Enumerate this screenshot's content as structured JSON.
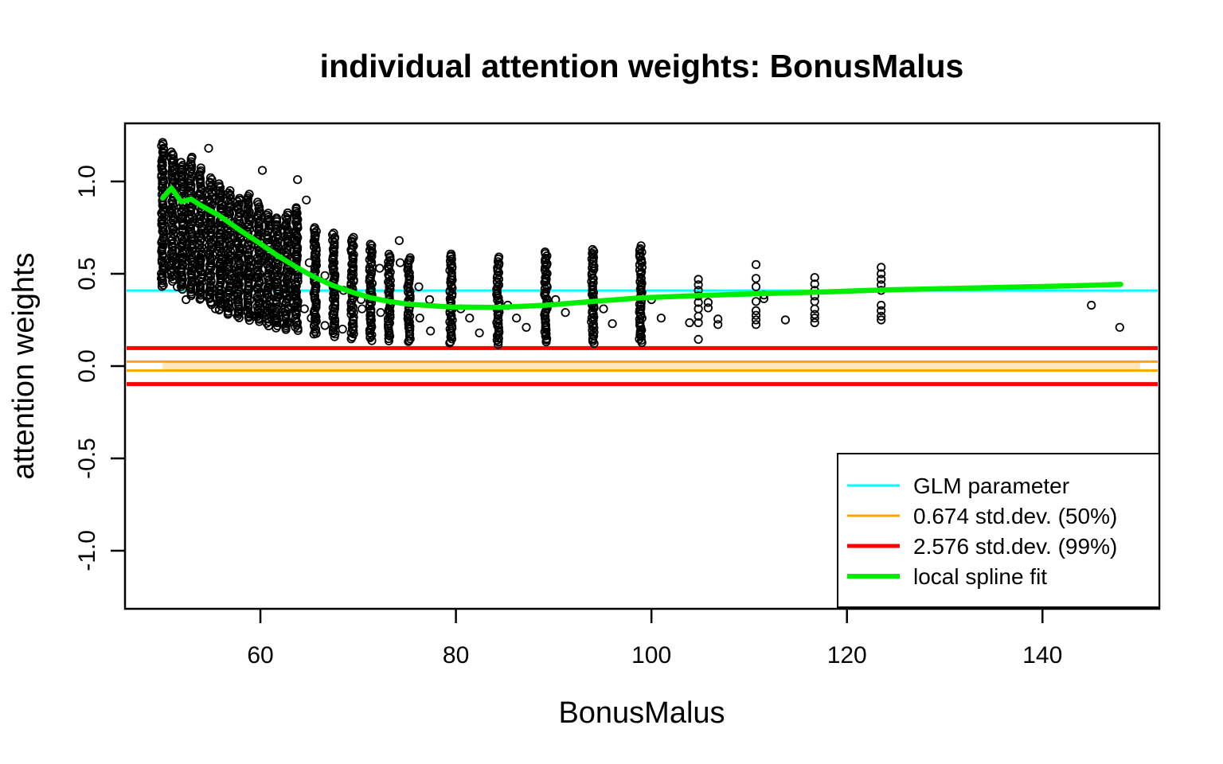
{
  "chart_data": {
    "type": "scatter",
    "title": "individual attention weights: BonusMalus",
    "xlabel": "BonusMalus",
    "ylabel": "attention weights",
    "x_ticks": [
      60,
      80,
      100,
      120,
      140
    ],
    "y_ticks": [
      1.0,
      0.5,
      0.0,
      -0.5,
      -1.0
    ],
    "y_tick_labels": [
      "1.0",
      "0.5",
      "0.0",
      "-0.5",
      "-1.0"
    ],
    "xlim": [
      46.15,
      151.95
    ],
    "ylim": [
      -1.315,
      1.315
    ],
    "grid": false,
    "legend_position": "bottom-right",
    "glm_parameter": 0.409,
    "std_band_50": {
      "lo": -0.0245,
      "hi": 0.0245,
      "x_from": 50,
      "x_to": 150
    },
    "std_band_99": {
      "lo": -0.0975,
      "hi": 0.0975
    },
    "colors": {
      "glm": "#00ffff",
      "band50_line": "#ffa500",
      "band50_fill": "#fde7bb",
      "band99": "#ff0000",
      "spline": "#00ee00",
      "points": "#000000"
    },
    "legend": [
      {
        "label": "GLM parameter",
        "color": "#00ffff",
        "lw": 3
      },
      {
        "label": "0.674 std.dev. (50%)",
        "color": "#ffa500",
        "lw": 3
      },
      {
        "label": "2.576 std.dev. (99%)",
        "color": "#ff0000",
        "lw": 5
      },
      {
        "label": "local spline fit",
        "color": "#00ee00",
        "lw": 6
      }
    ],
    "spline": [
      [
        50.0,
        0.91
      ],
      [
        50.9,
        0.965
      ],
      [
        51.9,
        0.89
      ],
      [
        52.9,
        0.905
      ],
      [
        53.9,
        0.87
      ],
      [
        55.8,
        0.815
      ],
      [
        57.8,
        0.74
      ],
      [
        59.8,
        0.67
      ],
      [
        61.7,
        0.6
      ],
      [
        63.7,
        0.535
      ],
      [
        65.6,
        0.48
      ],
      [
        67.5,
        0.435
      ],
      [
        69.4,
        0.4
      ],
      [
        71.3,
        0.37
      ],
      [
        73.2,
        0.35
      ],
      [
        75.2,
        0.335
      ],
      [
        79.5,
        0.32
      ],
      [
        84.3,
        0.318
      ],
      [
        89.2,
        0.33
      ],
      [
        94.0,
        0.35
      ],
      [
        98.9,
        0.37
      ],
      [
        104.8,
        0.382
      ],
      [
        110.7,
        0.392
      ],
      [
        116.7,
        0.4
      ],
      [
        123.5,
        0.412
      ],
      [
        130.0,
        0.42
      ],
      [
        137.0,
        0.428
      ],
      [
        143.0,
        0.435
      ],
      [
        148.0,
        0.443
      ]
    ],
    "dense_columns": [
      {
        "x": 50.0,
        "min": 0.43,
        "max": 1.215
      },
      {
        "x": 51.0,
        "min": 0.46,
        "max": 1.16
      },
      {
        "x": 52.0,
        "min": 0.42,
        "max": 1.1
      },
      {
        "x": 52.9,
        "min": 0.38,
        "max": 1.13
      },
      {
        "x": 53.9,
        "min": 0.36,
        "max": 1.07
      },
      {
        "x": 54.9,
        "min": 0.33,
        "max": 1.02
      },
      {
        "x": 55.9,
        "min": 0.3,
        "max": 0.985
      },
      {
        "x": 56.8,
        "min": 0.28,
        "max": 0.95
      },
      {
        "x": 57.8,
        "min": 0.26,
        "max": 0.91
      },
      {
        "x": 58.8,
        "min": 0.25,
        "max": 0.93
      },
      {
        "x": 59.8,
        "min": 0.24,
        "max": 0.885
      },
      {
        "x": 60.8,
        "min": 0.22,
        "max": 0.83
      },
      {
        "x": 61.7,
        "min": 0.21,
        "max": 0.8
      },
      {
        "x": 62.7,
        "min": 0.2,
        "max": 0.83
      },
      {
        "x": 63.7,
        "min": 0.19,
        "max": 0.86
      },
      {
        "x": 65.6,
        "min": 0.17,
        "max": 0.75
      },
      {
        "x": 67.5,
        "min": 0.16,
        "max": 0.72
      },
      {
        "x": 69.4,
        "min": 0.15,
        "max": 0.7
      },
      {
        "x": 71.3,
        "min": 0.14,
        "max": 0.66
      },
      {
        "x": 73.2,
        "min": 0.14,
        "max": 0.605
      },
      {
        "x": 75.2,
        "min": 0.13,
        "max": 0.59
      },
      {
        "x": 79.5,
        "min": 0.125,
        "max": 0.61
      },
      {
        "x": 84.3,
        "min": 0.12,
        "max": 0.59
      },
      {
        "x": 89.2,
        "min": 0.13,
        "max": 0.62
      },
      {
        "x": 94.0,
        "min": 0.12,
        "max": 0.63
      },
      {
        "x": 98.9,
        "min": 0.125,
        "max": 0.65
      }
    ],
    "points": [
      [
        104.8,
        0.47
      ],
      [
        104.8,
        0.44
      ],
      [
        104.8,
        0.41
      ],
      [
        104.8,
        0.38
      ],
      [
        104.8,
        0.345
      ],
      [
        104.8,
        0.31
      ],
      [
        104.8,
        0.27
      ],
      [
        104.8,
        0.235
      ],
      [
        104.8,
        0.145
      ],
      [
        103.9,
        0.235
      ],
      [
        105.8,
        0.345
      ],
      [
        105.8,
        0.315
      ],
      [
        106.8,
        0.255
      ],
      [
        106.8,
        0.225
      ],
      [
        110.7,
        0.55
      ],
      [
        110.7,
        0.475
      ],
      [
        110.7,
        0.43
      ],
      [
        110.7,
        0.35
      ],
      [
        110.7,
        0.3
      ],
      [
        110.7,
        0.275
      ],
      [
        110.7,
        0.25
      ],
      [
        110.7,
        0.225
      ],
      [
        111.5,
        0.385
      ],
      [
        111.5,
        0.365
      ],
      [
        113.7,
        0.25
      ],
      [
        116.7,
        0.48
      ],
      [
        116.7,
        0.445
      ],
      [
        116.7,
        0.41
      ],
      [
        116.7,
        0.38
      ],
      [
        116.7,
        0.35
      ],
      [
        116.7,
        0.31
      ],
      [
        116.7,
        0.28
      ],
      [
        116.7,
        0.26
      ],
      [
        116.7,
        0.235
      ],
      [
        123.5,
        0.535
      ],
      [
        123.5,
        0.5
      ],
      [
        123.5,
        0.47
      ],
      [
        123.5,
        0.44
      ],
      [
        123.5,
        0.41
      ],
      [
        123.5,
        0.33
      ],
      [
        123.5,
        0.3
      ],
      [
        123.5,
        0.27
      ],
      [
        123.5,
        0.25
      ],
      [
        145.0,
        0.33
      ],
      [
        147.9,
        0.21
      ],
      [
        50.5,
        0.5
      ],
      [
        51.4,
        0.56
      ],
      [
        51.5,
        0.43
      ],
      [
        52.5,
        0.66
      ],
      [
        52.4,
        0.36
      ],
      [
        53.5,
        0.6
      ],
      [
        53.4,
        0.42
      ],
      [
        54.4,
        0.72
      ],
      [
        54.5,
        0.38
      ],
      [
        54.7,
        1.18
      ],
      [
        55.5,
        0.52
      ],
      [
        55.4,
        0.31
      ],
      [
        56.5,
        0.58
      ],
      [
        56.4,
        0.34
      ],
      [
        57.5,
        0.47
      ],
      [
        57.4,
        0.29
      ],
      [
        58.4,
        0.53
      ],
      [
        58.5,
        0.3
      ],
      [
        59.5,
        0.48
      ],
      [
        59.4,
        0.27
      ],
      [
        60.2,
        1.06
      ],
      [
        60.5,
        0.43
      ],
      [
        60.4,
        0.29
      ],
      [
        61.4,
        0.52
      ],
      [
        61.5,
        0.25
      ],
      [
        62.5,
        0.45
      ],
      [
        62.4,
        0.23
      ],
      [
        63.5,
        0.39
      ],
      [
        63.8,
        1.01
      ],
      [
        64.5,
        0.31
      ],
      [
        64.7,
        0.9
      ],
      [
        65.0,
        0.56
      ],
      [
        65.2,
        0.26
      ],
      [
        66.6,
        0.49
      ],
      [
        66.6,
        0.22
      ],
      [
        68.5,
        0.41
      ],
      [
        68.4,
        0.2
      ],
      [
        70.3,
        0.36
      ],
      [
        70.4,
        0.31
      ],
      [
        72.3,
        0.29
      ],
      [
        72.2,
        0.53
      ],
      [
        74.2,
        0.68
      ],
      [
        74.3,
        0.56
      ],
      [
        76.2,
        0.43
      ],
      [
        76.3,
        0.26
      ],
      [
        77.3,
        0.36
      ],
      [
        77.4,
        0.19
      ],
      [
        80.5,
        0.31
      ],
      [
        81.4,
        0.26
      ],
      [
        82.4,
        0.18
      ],
      [
        85.3,
        0.33
      ],
      [
        86.2,
        0.26
      ],
      [
        87.2,
        0.21
      ],
      [
        90.2,
        0.36
      ],
      [
        91.2,
        0.29
      ],
      [
        95.1,
        0.31
      ],
      [
        96.0,
        0.23
      ],
      [
        100.0,
        0.36
      ],
      [
        101.0,
        0.26
      ]
    ]
  },
  "layout_note": "R base-graphics style scatter plot"
}
